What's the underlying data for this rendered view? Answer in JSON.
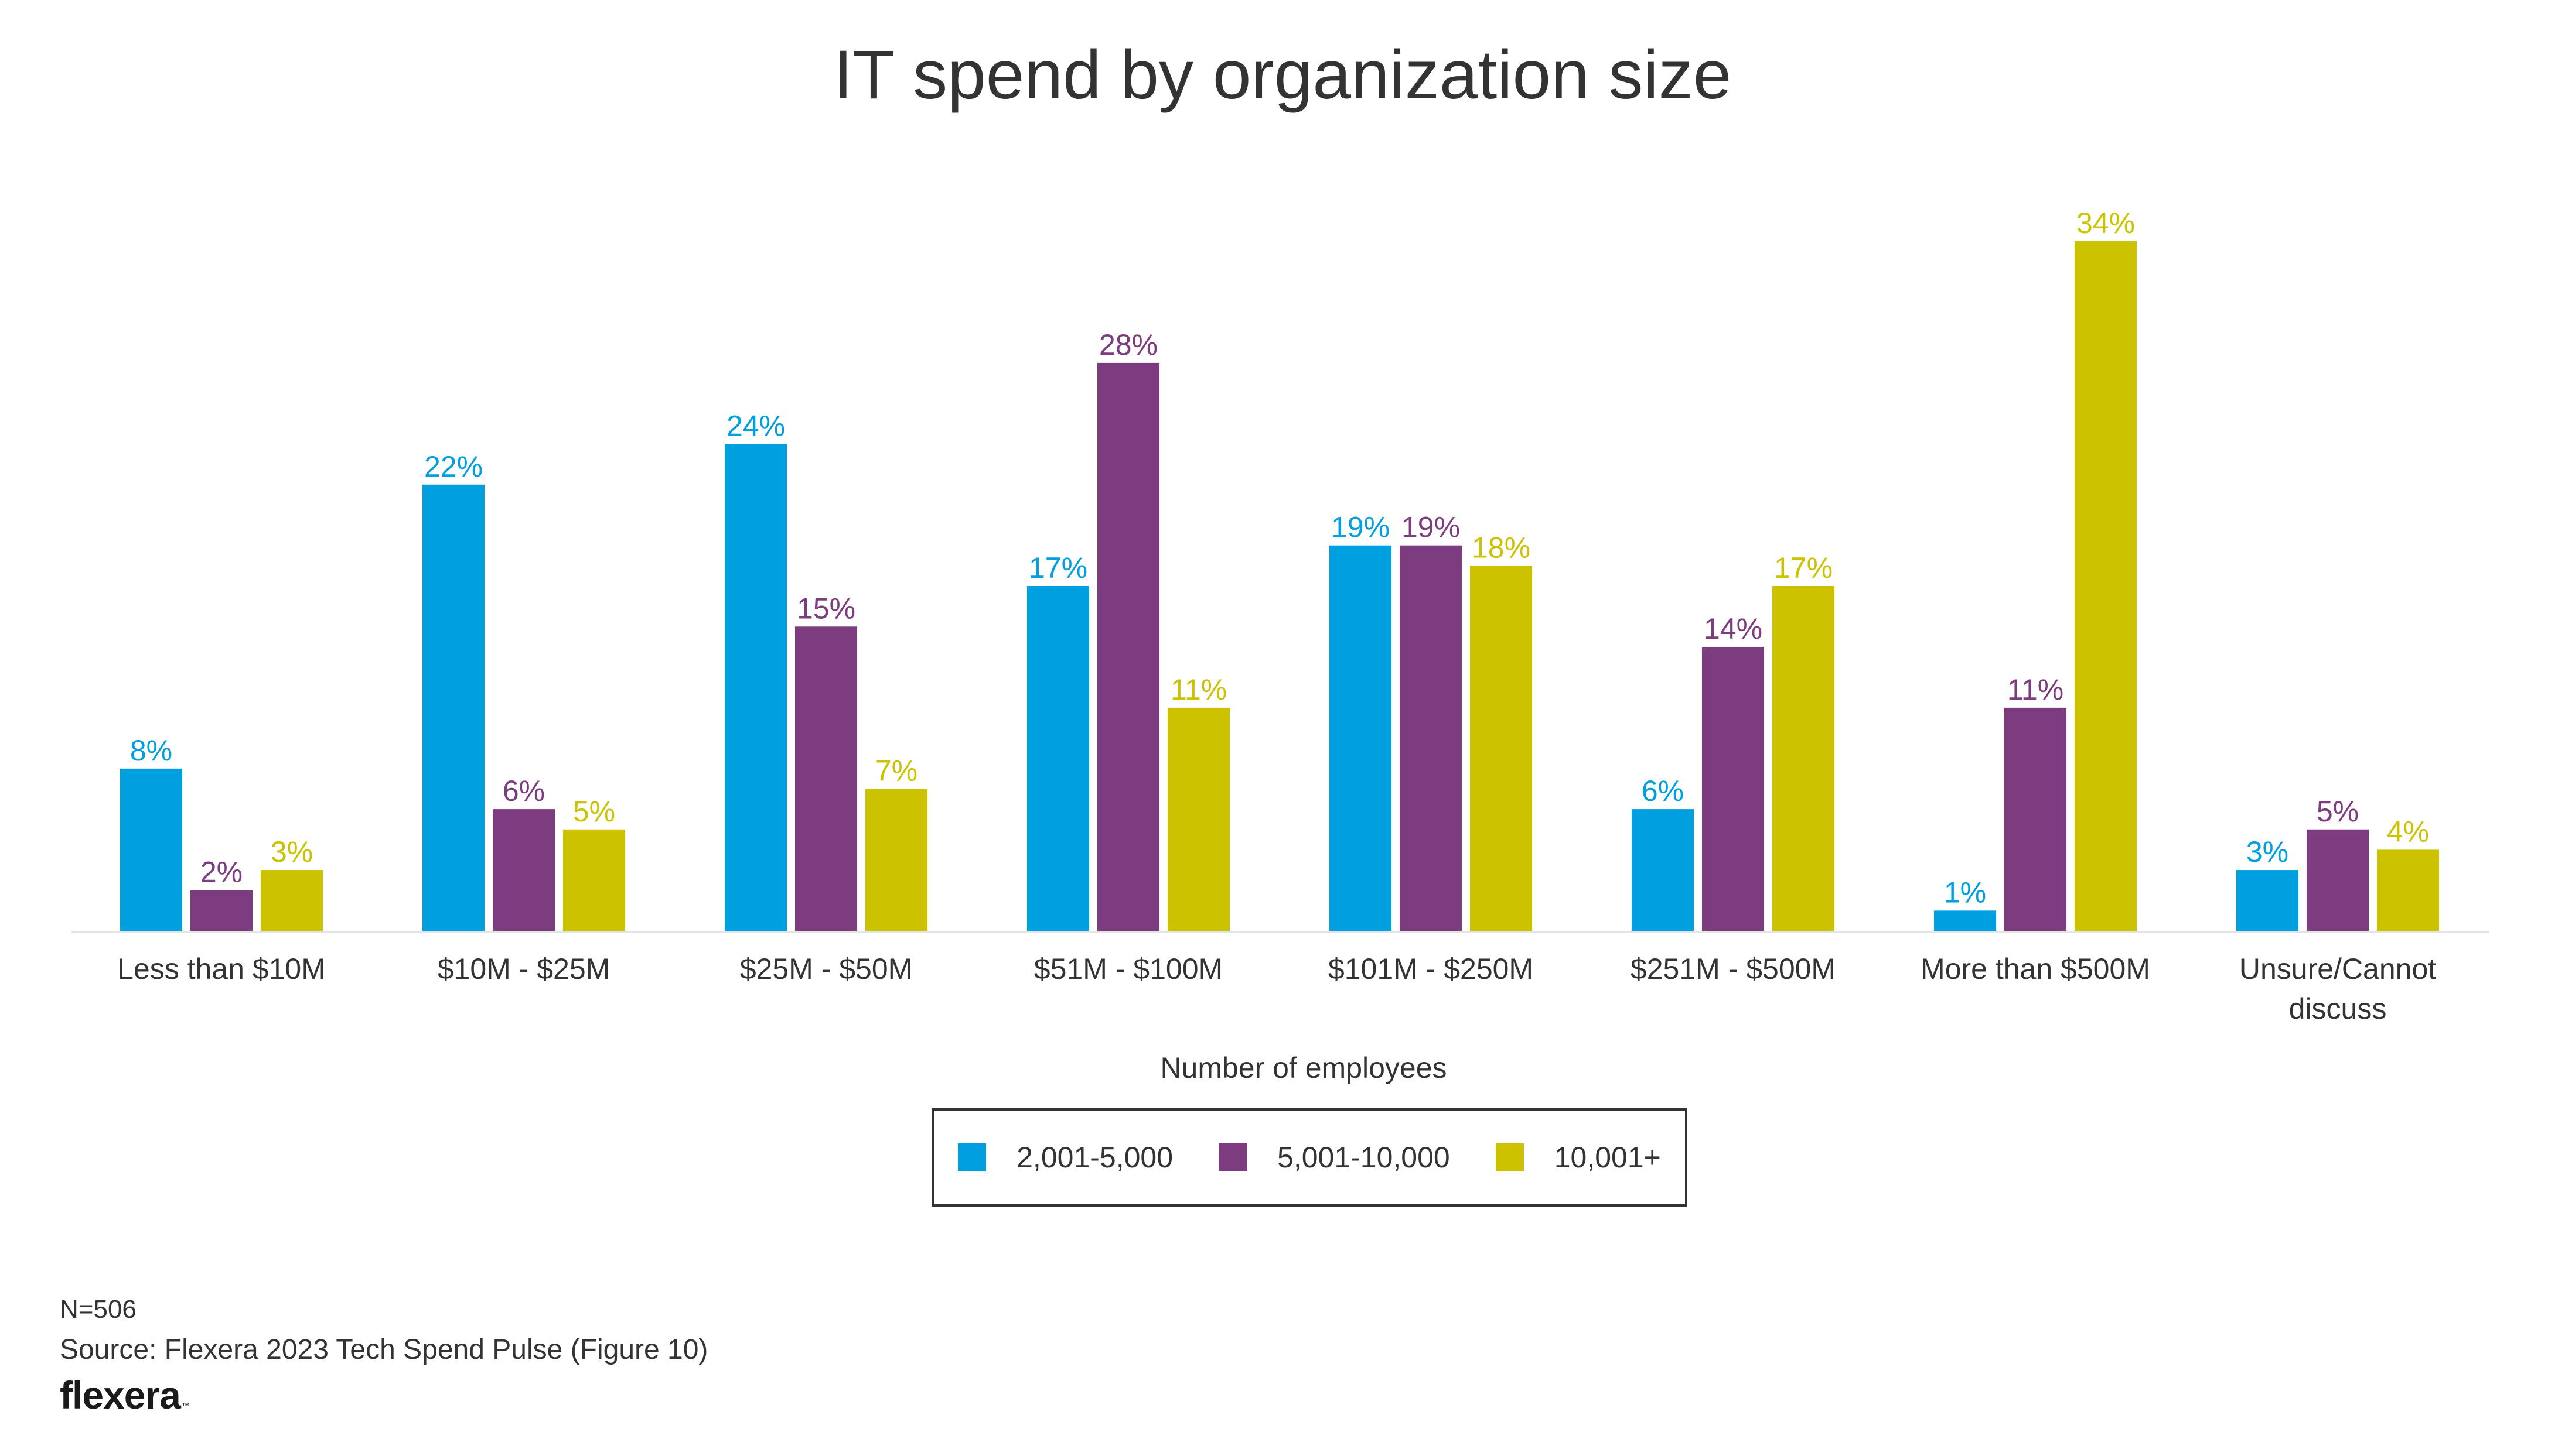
{
  "chart_data": {
    "type": "bar",
    "title": "IT spend by organization size",
    "xlabel": "",
    "ylabel": "",
    "ylim": [
      0,
      34
    ],
    "grid": false,
    "categories": [
      [
        "Less than $10M"
      ],
      [
        "$10M - $25M"
      ],
      [
        "$25M - $50M"
      ],
      [
        "$51M - $100M"
      ],
      [
        "$101M - $250M"
      ],
      [
        "$251M - $500M"
      ],
      [
        "More than $500M"
      ],
      [
        "Unsure/Cannot",
        "discuss"
      ]
    ],
    "series": [
      {
        "name": "2,001-5,000",
        "color": "#009fdf",
        "values": [
          8,
          22,
          24,
          17,
          19,
          6,
          1,
          3
        ]
      },
      {
        "name": "5,001-10,000",
        "color": "#7d3c7f",
        "values": [
          2,
          6,
          15,
          28,
          19,
          14,
          11,
          5
        ]
      },
      {
        "name": "10,001+",
        "color": "#ccc200",
        "values": [
          3,
          5,
          7,
          11,
          18,
          17,
          34,
          4
        ]
      }
    ],
    "value_suffix": "%",
    "legend": {
      "title": "Number of employees",
      "position": "bottom-center"
    },
    "baseline_color": "#e3e3e3"
  },
  "footer": {
    "sample_size": "N=506",
    "source": "Source: Flexera 2023 Tech Spend Pulse (Figure 10)",
    "logo_text": "flexera",
    "logo_mark": "™"
  }
}
